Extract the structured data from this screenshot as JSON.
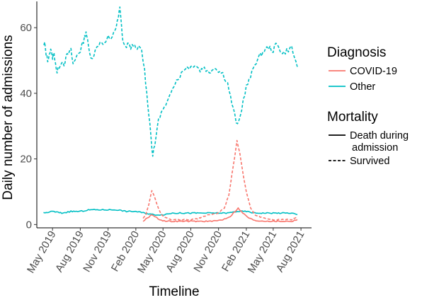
{
  "chart_data": {
    "type": "line",
    "xlabel": "Timeline",
    "ylabel": "Daily number of admissions",
    "xlim": [
      "2019-03-10",
      "2021-09-05"
    ],
    "ylim": [
      -1,
      68
    ],
    "x_ticks": [
      {
        "date": "2019-05-01",
        "label": "May 2019"
      },
      {
        "date": "2019-08-01",
        "label": "Aug 2019"
      },
      {
        "date": "2019-11-01",
        "label": "Nov 2019"
      },
      {
        "date": "2020-02-01",
        "label": "Feb 2020"
      },
      {
        "date": "2020-05-01",
        "label": "May 2020"
      },
      {
        "date": "2020-08-01",
        "label": "Aug 2020"
      },
      {
        "date": "2020-11-01",
        "label": "Nov 2020"
      },
      {
        "date": "2021-02-01",
        "label": "Feb 2021"
      },
      {
        "date": "2021-05-01",
        "label": "May 2021"
      },
      {
        "date": "2021-08-01",
        "label": "Aug 2021"
      }
    ],
    "y_ticks": [
      0,
      20,
      40,
      60
    ],
    "grid": false,
    "legend": {
      "placement": "right",
      "groups": [
        {
          "title": "Diagnosis",
          "entries": [
            {
              "label": "COVID-19",
              "color": "#F8766D"
            },
            {
              "label": "Other",
              "color": "#00BFC4"
            }
          ]
        },
        {
          "title": "Mortality",
          "entries": [
            {
              "label": "Death during\nadmission",
              "linetype": "solid"
            },
            {
              "label": "Survived",
              "linetype": "dashed"
            }
          ]
        }
      ]
    },
    "series": [
      {
        "diagnosis": "Other",
        "mortality": "Survived",
        "color": "#00BFC4",
        "dash": true,
        "points": [
          [
            "2019-04-01",
            54.5
          ],
          [
            "2019-04-05",
            55
          ],
          [
            "2019-04-10",
            52
          ],
          [
            "2019-04-15",
            50
          ],
          [
            "2019-04-20",
            52
          ],
          [
            "2019-04-25",
            53
          ],
          [
            "2019-05-01",
            51
          ],
          [
            "2019-05-06",
            52
          ],
          [
            "2019-05-10",
            50
          ],
          [
            "2019-05-16",
            46
          ],
          [
            "2019-05-22",
            48
          ],
          [
            "2019-06-01",
            50
          ],
          [
            "2019-06-08",
            49
          ],
          [
            "2019-06-15",
            51
          ],
          [
            "2019-06-22",
            52
          ],
          [
            "2019-07-01",
            53
          ],
          [
            "2019-07-08",
            49
          ],
          [
            "2019-07-15",
            50
          ],
          [
            "2019-07-22",
            52
          ],
          [
            "2019-08-01",
            53
          ],
          [
            "2019-08-08",
            55
          ],
          [
            "2019-08-15",
            57
          ],
          [
            "2019-08-20",
            59
          ],
          [
            "2019-08-25",
            56
          ],
          [
            "2019-09-01",
            52
          ],
          [
            "2019-09-10",
            51
          ],
          [
            "2019-09-20",
            53
          ],
          [
            "2019-10-01",
            55
          ],
          [
            "2019-10-10",
            56
          ],
          [
            "2019-10-20",
            55
          ],
          [
            "2019-11-01",
            57
          ],
          [
            "2019-11-10",
            56
          ],
          [
            "2019-11-20",
            59
          ],
          [
            "2019-11-28",
            60
          ],
          [
            "2019-12-05",
            63
          ],
          [
            "2019-12-10",
            66
          ],
          [
            "2019-12-15",
            61
          ],
          [
            "2019-12-20",
            56
          ],
          [
            "2019-12-28",
            54
          ],
          [
            "2020-01-05",
            55
          ],
          [
            "2020-01-15",
            54
          ],
          [
            "2020-01-25",
            55
          ],
          [
            "2020-02-01",
            53
          ],
          [
            "2020-02-10",
            54
          ],
          [
            "2020-02-20",
            53
          ],
          [
            "2020-03-01",
            47
          ],
          [
            "2020-03-08",
            40
          ],
          [
            "2020-03-15",
            34
          ],
          [
            "2020-03-22",
            27
          ],
          [
            "2020-03-28",
            21
          ],
          [
            "2020-04-04",
            24
          ],
          [
            "2020-04-12",
            30
          ],
          [
            "2020-04-20",
            33
          ],
          [
            "2020-05-01",
            35
          ],
          [
            "2020-05-10",
            36
          ],
          [
            "2020-05-20",
            38
          ],
          [
            "2020-06-01",
            42
          ],
          [
            "2020-06-15",
            44
          ],
          [
            "2020-07-01",
            46
          ],
          [
            "2020-07-15",
            48
          ],
          [
            "2020-08-01",
            48
          ],
          [
            "2020-08-15",
            49
          ],
          [
            "2020-09-01",
            47
          ],
          [
            "2020-09-15",
            48
          ],
          [
            "2020-10-01",
            46
          ],
          [
            "2020-10-15",
            48
          ],
          [
            "2020-11-01",
            47
          ],
          [
            "2020-11-15",
            46
          ],
          [
            "2020-12-01",
            43
          ],
          [
            "2020-12-15",
            37
          ],
          [
            "2020-12-25",
            33
          ],
          [
            "2021-01-03",
            30
          ],
          [
            "2021-01-12",
            33
          ],
          [
            "2021-01-22",
            38
          ],
          [
            "2021-02-01",
            42
          ],
          [
            "2021-02-15",
            45
          ],
          [
            "2021-03-01",
            49
          ],
          [
            "2021-03-15",
            51
          ],
          [
            "2021-04-01",
            53
          ],
          [
            "2021-04-15",
            54
          ],
          [
            "2021-05-01",
            53
          ],
          [
            "2021-05-10",
            55
          ],
          [
            "2021-05-20",
            54
          ],
          [
            "2021-06-01",
            52
          ],
          [
            "2021-06-15",
            53
          ],
          [
            "2021-07-01",
            54
          ],
          [
            "2021-07-10",
            51
          ],
          [
            "2021-07-20",
            48
          ]
        ]
      },
      {
        "diagnosis": "Other",
        "mortality": "Death during admission",
        "color": "#00BFC4",
        "dash": false,
        "points": [
          [
            "2019-04-01",
            3.5
          ],
          [
            "2019-05-01",
            4
          ],
          [
            "2019-06-01",
            3.5
          ],
          [
            "2019-07-01",
            4
          ],
          [
            "2019-08-01",
            4
          ],
          [
            "2019-09-01",
            4.5
          ],
          [
            "2019-10-01",
            4.5
          ],
          [
            "2019-11-01",
            4.5
          ],
          [
            "2019-12-01",
            4.5
          ],
          [
            "2020-01-01",
            4
          ],
          [
            "2020-02-01",
            4
          ],
          [
            "2020-03-01",
            3.5
          ],
          [
            "2020-04-01",
            3
          ],
          [
            "2020-05-01",
            3
          ],
          [
            "2020-06-01",
            3.5
          ],
          [
            "2020-07-01",
            3.5
          ],
          [
            "2020-08-01",
            3.5
          ],
          [
            "2020-09-01",
            3.5
          ],
          [
            "2020-10-01",
            3.5
          ],
          [
            "2020-11-01",
            3.5
          ],
          [
            "2020-12-01",
            3.5
          ],
          [
            "2021-01-01",
            4
          ],
          [
            "2021-02-01",
            4
          ],
          [
            "2021-03-01",
            3.5
          ],
          [
            "2021-04-01",
            3.5
          ],
          [
            "2021-05-01",
            3.5
          ],
          [
            "2021-06-01",
            3.5
          ],
          [
            "2021-07-01",
            3.5
          ],
          [
            "2021-07-20",
            3
          ]
        ]
      },
      {
        "diagnosis": "COVID-19",
        "mortality": "Survived",
        "color": "#F8766D",
        "dash": true,
        "points": [
          [
            "2020-02-25",
            2
          ],
          [
            "2020-03-05",
            3
          ],
          [
            "2020-03-15",
            6
          ],
          [
            "2020-03-25",
            10.5
          ],
          [
            "2020-04-05",
            8
          ],
          [
            "2020-04-15",
            5
          ],
          [
            "2020-04-25",
            3
          ],
          [
            "2020-05-10",
            2
          ],
          [
            "2020-06-01",
            1.5
          ],
          [
            "2020-07-01",
            1.5
          ],
          [
            "2020-08-01",
            1.5
          ],
          [
            "2020-09-01",
            2
          ],
          [
            "2020-10-01",
            3
          ],
          [
            "2020-11-01",
            3.5
          ],
          [
            "2020-11-20",
            5
          ],
          [
            "2020-12-05",
            9
          ],
          [
            "2020-12-15",
            15
          ],
          [
            "2020-12-25",
            21
          ],
          [
            "2021-01-01",
            25.5
          ],
          [
            "2021-01-10",
            22
          ],
          [
            "2021-01-20",
            16
          ],
          [
            "2021-02-01",
            10
          ],
          [
            "2021-02-15",
            5
          ],
          [
            "2021-03-01",
            3
          ],
          [
            "2021-04-01",
            2
          ],
          [
            "2021-05-01",
            1.5
          ],
          [
            "2021-06-01",
            1.5
          ],
          [
            "2021-07-01",
            1.5
          ],
          [
            "2021-07-20",
            2.5
          ]
        ]
      },
      {
        "diagnosis": "COVID-19",
        "mortality": "Death during admission",
        "color": "#F8766D",
        "dash": false,
        "points": [
          [
            "2020-02-25",
            1
          ],
          [
            "2020-03-10",
            2
          ],
          [
            "2020-03-25",
            3
          ],
          [
            "2020-04-05",
            2.5
          ],
          [
            "2020-04-20",
            1.5
          ],
          [
            "2020-05-10",
            1
          ],
          [
            "2020-07-01",
            1
          ],
          [
            "2020-09-01",
            1
          ],
          [
            "2020-10-15",
            1
          ],
          [
            "2020-11-15",
            1.5
          ],
          [
            "2020-12-10",
            2.5
          ],
          [
            "2020-12-25",
            4
          ],
          [
            "2021-01-05",
            5
          ],
          [
            "2021-01-20",
            3.5
          ],
          [
            "2021-02-10",
            2
          ],
          [
            "2021-03-01",
            1.2
          ],
          [
            "2021-05-01",
            1
          ],
          [
            "2021-07-01",
            1
          ],
          [
            "2021-07-20",
            1.5
          ]
        ]
      }
    ]
  }
}
